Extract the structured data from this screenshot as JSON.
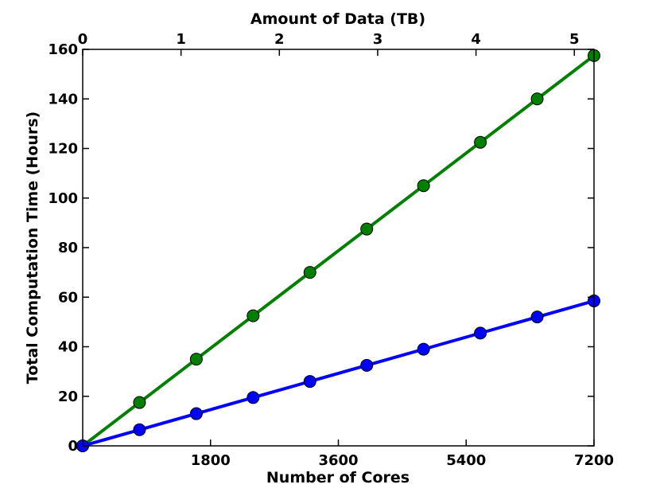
{
  "chart_data": {
    "type": "line",
    "title": "",
    "xlabel": "Number of Cores",
    "ylabel": "Total Computation Time (Hours)",
    "x2label": "Amount of Data (TB)",
    "xlim": [
      0,
      7200
    ],
    "ylim": [
      0,
      160
    ],
    "x2lim": [
      0,
      5.2
    ],
    "xticks": [
      1800,
      3600,
      5400,
      7200
    ],
    "xtick_labels": [
      "1800",
      "3600",
      "5400",
      "7200"
    ],
    "x2ticks": [
      0,
      1,
      2,
      3,
      4,
      5
    ],
    "x2tick_labels": [
      "0",
      "1",
      "2",
      "3",
      "4",
      "5"
    ],
    "yticks": [
      0,
      20,
      40,
      60,
      80,
      100,
      120,
      140,
      160
    ],
    "ytick_labels": [
      "0",
      "20",
      "40",
      "60",
      "80",
      "100",
      "120",
      "140",
      "160"
    ],
    "grid": false,
    "legend": "none",
    "x": [
      0,
      800,
      1600,
      2400,
      3200,
      4000,
      4800,
      5600,
      6400,
      7200
    ],
    "series": [
      {
        "color": "#007f00",
        "values": [
          0,
          17.5,
          35,
          52.5,
          70,
          87.5,
          105,
          122.5,
          140,
          157.5
        ]
      },
      {
        "color": "#0000ff",
        "values": [
          0,
          6.5,
          13,
          19.5,
          26,
          32.5,
          39,
          45.5,
          52,
          58.5
        ]
      }
    ]
  }
}
